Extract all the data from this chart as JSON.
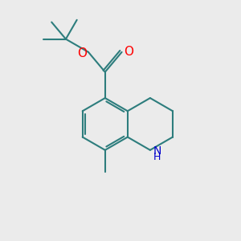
{
  "background_color": "#ebebeb",
  "bond_color": "#2d7d7d",
  "bond_width": 1.5,
  "atom_colors": {
    "O": "#ff0000",
    "N": "#0000cc"
  },
  "font_size": 10
}
